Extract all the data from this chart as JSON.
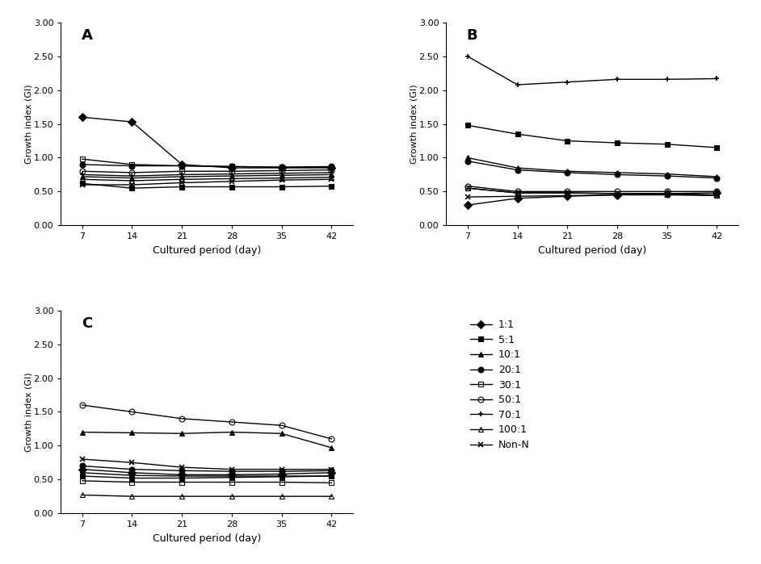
{
  "x": [
    7,
    14,
    21,
    28,
    35,
    42
  ],
  "panel_A": {
    "label": "A",
    "series": {
      "1:1": [
        1.6,
        1.53,
        0.9,
        0.85,
        0.85,
        0.85
      ],
      "5:1": [
        0.62,
        0.55,
        0.57,
        0.57,
        0.57,
        0.58
      ],
      "10:1": [
        0.72,
        0.7,
        0.72,
        0.73,
        0.74,
        0.75
      ],
      "20:1": [
        0.9,
        0.88,
        0.88,
        0.87,
        0.86,
        0.87
      ],
      "30:1": [
        0.98,
        0.9,
        0.88,
        0.87,
        0.86,
        0.86
      ],
      "50:1": [
        0.8,
        0.78,
        0.8,
        0.8,
        0.81,
        0.82
      ],
      "70:1": [
        0.75,
        0.73,
        0.75,
        0.76,
        0.77,
        0.78
      ],
      "100:1": [
        0.68,
        0.66,
        0.68,
        0.69,
        0.7,
        0.71
      ],
      "Non-N": [
        0.6,
        0.6,
        0.63,
        0.65,
        0.67,
        0.68
      ]
    }
  },
  "panel_B": {
    "label": "B",
    "series": {
      "1:1": [
        0.3,
        0.4,
        0.43,
        0.45,
        0.47,
        0.48
      ],
      "5:1": [
        1.48,
        1.35,
        1.25,
        1.22,
        1.2,
        1.15
      ],
      "10:1": [
        1.0,
        0.85,
        0.8,
        0.78,
        0.76,
        0.72
      ],
      "20:1": [
        0.95,
        0.82,
        0.78,
        0.75,
        0.73,
        0.7
      ],
      "30:1": [
        0.55,
        0.48,
        0.48,
        0.47,
        0.47,
        0.44
      ],
      "50:1": [
        0.58,
        0.5,
        0.5,
        0.5,
        0.5,
        0.5
      ],
      "70:1": [
        2.5,
        2.08,
        2.12,
        2.16,
        2.16,
        2.17
      ],
      "100:1": [
        0.55,
        0.48,
        0.48,
        0.47,
        0.47,
        0.45
      ],
      "Non-N": [
        0.42,
        0.43,
        0.44,
        0.45,
        0.45,
        0.44
      ]
    }
  },
  "panel_C": {
    "label": "C",
    "series": {
      "1:1": [
        0.65,
        0.6,
        0.57,
        0.57,
        0.58,
        0.6
      ],
      "5:1": [
        0.55,
        0.52,
        0.52,
        0.53,
        0.54,
        0.55
      ],
      "10:1": [
        1.2,
        1.19,
        1.18,
        1.2,
        1.18,
        0.97
      ],
      "20:1": [
        0.7,
        0.65,
        0.63,
        0.62,
        0.62,
        0.63
      ],
      "30:1": [
        0.48,
        0.46,
        0.46,
        0.46,
        0.46,
        0.45
      ],
      "50:1": [
        1.6,
        1.5,
        1.4,
        1.35,
        1.3,
        1.1
      ],
      "70:1": [
        0.6,
        0.56,
        0.55,
        0.55,
        0.55,
        0.55
      ],
      "100:1": [
        0.27,
        0.25,
        0.25,
        0.25,
        0.25,
        0.25
      ],
      "Non-N": [
        0.8,
        0.75,
        0.68,
        0.65,
        0.65,
        0.65
      ]
    }
  },
  "series_styles": {
    "1:1": {
      "marker": "D",
      "fillstyle": "full",
      "linestyle": "-"
    },
    "5:1": {
      "marker": "s",
      "fillstyle": "full",
      "linestyle": "-"
    },
    "10:1": {
      "marker": "^",
      "fillstyle": "full",
      "linestyle": "-"
    },
    "20:1": {
      "marker": "o",
      "fillstyle": "full",
      "linestyle": "-"
    },
    "30:1": {
      "marker": "s",
      "fillstyle": "none",
      "linestyle": "-"
    },
    "50:1": {
      "marker": "o",
      "fillstyle": "none",
      "linestyle": "-"
    },
    "70:1": {
      "marker": "+",
      "fillstyle": "full",
      "linestyle": "-"
    },
    "100:1": {
      "marker": "^",
      "fillstyle": "none",
      "linestyle": "-"
    },
    "Non-N": {
      "marker": "x",
      "fillstyle": "full",
      "linestyle": "-"
    }
  },
  "series_order": [
    "1:1",
    "5:1",
    "10:1",
    "20:1",
    "30:1",
    "50:1",
    "70:1",
    "100:1",
    "Non-N"
  ],
  "ylabel": "Growth index (GI)",
  "xlabel": "Cultured period (day)",
  "ylim": [
    0.0,
    3.0
  ],
  "yticks": [
    0.0,
    0.5,
    1.0,
    1.5,
    2.0,
    2.5,
    3.0
  ],
  "xticks": [
    7,
    14,
    21,
    28,
    35,
    42
  ],
  "color": "black",
  "markersize": 5,
  "linewidth": 1.0,
  "tick_fontsize": 8,
  "label_fontsize": 9,
  "panel_label_fontsize": 13
}
